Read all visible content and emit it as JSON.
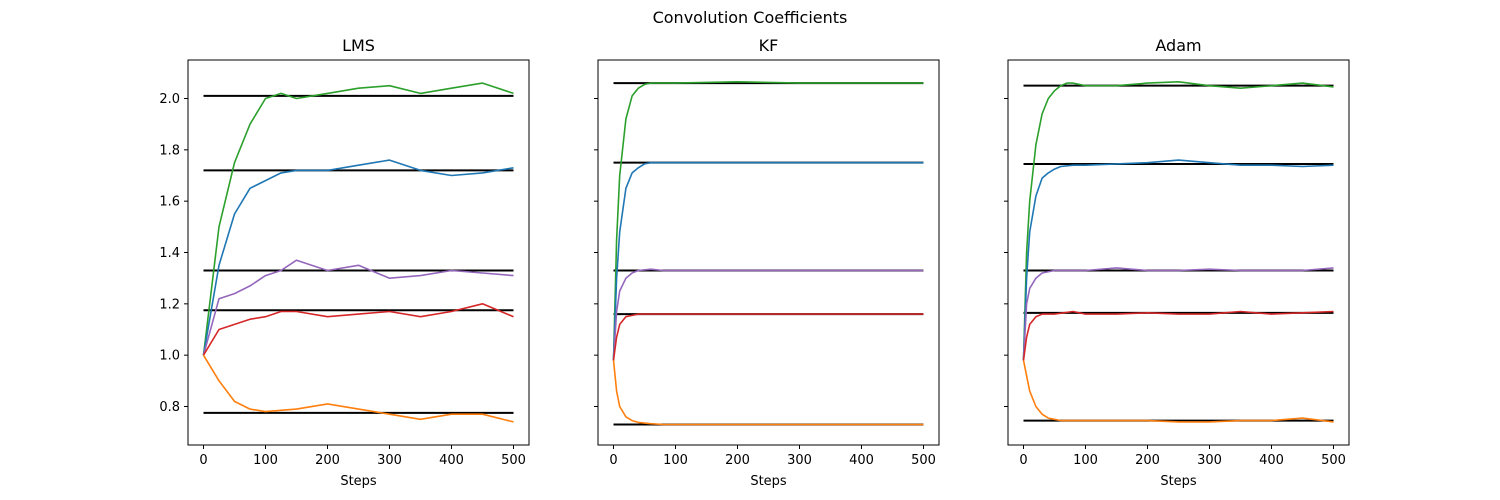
{
  "chart_data": {
    "type": "line",
    "title": "Convolution Coefficients",
    "shared_y": true,
    "ylim": [
      0.65,
      2.15
    ],
    "yticks": [
      0.8,
      1.0,
      1.2,
      1.4,
      1.6,
      1.8,
      2.0
    ],
    "ytick_labels": [
      "0.8",
      "1.0",
      "1.2",
      "1.4",
      "1.6",
      "1.8",
      "2.0"
    ],
    "xlim": [
      -25,
      525
    ],
    "xticks": [
      0,
      100,
      200,
      300,
      400,
      500
    ],
    "xtick_labels": [
      "0",
      "100",
      "200",
      "300",
      "400",
      "500"
    ],
    "grid": false,
    "colors": {
      "blue": "#1f77b4",
      "orange": "#ff7f0e",
      "green": "#2ca02c",
      "red": "#d62728",
      "purple": "#9467bd",
      "target": "#000000"
    },
    "panels": [
      {
        "title": "LMS",
        "xlabel": "Steps",
        "targets": [
          2.01,
          1.72,
          1.33,
          1.175,
          0.775
        ],
        "series": [
          {
            "color": "green",
            "x": [
              0,
              25,
              50,
              75,
              100,
              125,
              150,
              175,
              200,
              250,
              300,
              350,
              400,
              450,
              500
            ],
            "y": [
              1.0,
              1.5,
              1.75,
              1.9,
              2.0,
              2.02,
              2.0,
              2.01,
              2.02,
              2.04,
              2.05,
              2.02,
              2.04,
              2.06,
              2.02
            ]
          },
          {
            "color": "blue",
            "x": [
              0,
              25,
              50,
              75,
              100,
              125,
              150,
              200,
              250,
              300,
              350,
              400,
              450,
              500
            ],
            "y": [
              1.0,
              1.35,
              1.55,
              1.65,
              1.68,
              1.71,
              1.72,
              1.72,
              1.74,
              1.76,
              1.72,
              1.7,
              1.71,
              1.73
            ]
          },
          {
            "color": "purple",
            "x": [
              0,
              25,
              50,
              75,
              100,
              125,
              150,
              200,
              250,
              300,
              350,
              400,
              450,
              500
            ],
            "y": [
              1.0,
              1.22,
              1.24,
              1.27,
              1.31,
              1.33,
              1.37,
              1.33,
              1.35,
              1.3,
              1.31,
              1.33,
              1.32,
              1.31
            ]
          },
          {
            "color": "red",
            "x": [
              0,
              25,
              50,
              75,
              100,
              125,
              150,
              200,
              250,
              300,
              350,
              400,
              450,
              500
            ],
            "y": [
              1.0,
              1.1,
              1.12,
              1.14,
              1.15,
              1.17,
              1.17,
              1.15,
              1.16,
              1.17,
              1.15,
              1.17,
              1.2,
              1.15
            ]
          },
          {
            "color": "orange",
            "x": [
              0,
              25,
              50,
              75,
              100,
              150,
              200,
              250,
              300,
              350,
              400,
              450,
              500
            ],
            "y": [
              1.0,
              0.9,
              0.82,
              0.79,
              0.78,
              0.79,
              0.81,
              0.79,
              0.77,
              0.75,
              0.77,
              0.77,
              0.74
            ]
          }
        ]
      },
      {
        "title": "KF",
        "xlabel": "Steps",
        "targets": [
          2.06,
          1.75,
          1.33,
          1.16,
          0.73
        ],
        "series": [
          {
            "color": "green",
            "x": [
              0,
              5,
              10,
              20,
              30,
              40,
              50,
              60,
              80,
              100,
              200,
              300,
              400,
              500
            ],
            "y": [
              0.98,
              1.45,
              1.7,
              1.92,
              2.01,
              2.04,
              2.055,
              2.06,
              2.06,
              2.06,
              2.065,
              2.06,
              2.06,
              2.06
            ]
          },
          {
            "color": "blue",
            "x": [
              0,
              5,
              10,
              20,
              30,
              40,
              50,
              60,
              80,
              100,
              200,
              300,
              400,
              500
            ],
            "y": [
              0.98,
              1.3,
              1.48,
              1.65,
              1.71,
              1.73,
              1.745,
              1.75,
              1.75,
              1.75,
              1.75,
              1.75,
              1.75,
              1.75
            ]
          },
          {
            "color": "purple",
            "x": [
              0,
              5,
              10,
              20,
              30,
              40,
              60,
              80,
              100,
              200,
              300,
              400,
              500
            ],
            "y": [
              0.98,
              1.17,
              1.25,
              1.3,
              1.32,
              1.33,
              1.335,
              1.33,
              1.33,
              1.33,
              1.33,
              1.33,
              1.33
            ]
          },
          {
            "color": "red",
            "x": [
              0,
              5,
              10,
              20,
              30,
              40,
              60,
              80,
              100,
              200,
              300,
              400,
              500
            ],
            "y": [
              0.98,
              1.07,
              1.12,
              1.15,
              1.155,
              1.16,
              1.16,
              1.16,
              1.16,
              1.16,
              1.16,
              1.16,
              1.16
            ]
          },
          {
            "color": "orange",
            "x": [
              0,
              5,
              10,
              20,
              30,
              40,
              60,
              80,
              100,
              200,
              300,
              400,
              500
            ],
            "y": [
              0.98,
              0.86,
              0.8,
              0.76,
              0.745,
              0.738,
              0.733,
              0.73,
              0.73,
              0.73,
              0.73,
              0.73,
              0.73
            ]
          }
        ]
      },
      {
        "title": "Adam",
        "xlabel": "Steps",
        "targets": [
          2.05,
          1.745,
          1.33,
          1.165,
          0.745
        ],
        "series": [
          {
            "color": "green",
            "x": [
              0,
              5,
              10,
              20,
              30,
              40,
              50,
              60,
              70,
              80,
              100,
              150,
              200,
              250,
              300,
              350,
              400,
              450,
              500
            ],
            "y": [
              0.98,
              1.4,
              1.6,
              1.82,
              1.94,
              2.0,
              2.03,
              2.05,
              2.06,
              2.06,
              2.05,
              2.05,
              2.06,
              2.065,
              2.05,
              2.04,
              2.05,
              2.06,
              2.045
            ]
          },
          {
            "color": "blue",
            "x": [
              0,
              5,
              10,
              20,
              30,
              40,
              50,
              60,
              80,
              100,
              150,
              200,
              250,
              300,
              350,
              400,
              450,
              500
            ],
            "y": [
              0.98,
              1.3,
              1.48,
              1.62,
              1.69,
              1.71,
              1.725,
              1.735,
              1.74,
              1.74,
              1.745,
              1.75,
              1.76,
              1.75,
              1.74,
              1.74,
              1.735,
              1.74
            ]
          },
          {
            "color": "purple",
            "x": [
              0,
              5,
              10,
              20,
              30,
              50,
              80,
              100,
              150,
              200,
              250,
              300,
              350,
              400,
              450,
              500
            ],
            "y": [
              0.98,
              1.2,
              1.26,
              1.3,
              1.32,
              1.33,
              1.33,
              1.33,
              1.34,
              1.33,
              1.33,
              1.335,
              1.33,
              1.33,
              1.33,
              1.34
            ]
          },
          {
            "color": "red",
            "x": [
              0,
              5,
              10,
              20,
              30,
              50,
              80,
              100,
              150,
              200,
              250,
              300,
              350,
              400,
              450,
              500
            ],
            "y": [
              0.98,
              1.07,
              1.12,
              1.15,
              1.16,
              1.16,
              1.17,
              1.16,
              1.16,
              1.165,
              1.16,
              1.16,
              1.17,
              1.16,
              1.165,
              1.17
            ]
          },
          {
            "color": "orange",
            "x": [
              0,
              5,
              10,
              20,
              30,
              40,
              50,
              60,
              80,
              100,
              150,
              200,
              250,
              300,
              350,
              400,
              450,
              500
            ],
            "y": [
              0.98,
              0.92,
              0.86,
              0.8,
              0.77,
              0.755,
              0.75,
              0.745,
              0.745,
              0.745,
              0.745,
              0.745,
              0.74,
              0.74,
              0.745,
              0.745,
              0.755,
              0.74
            ]
          }
        ]
      }
    ]
  }
}
